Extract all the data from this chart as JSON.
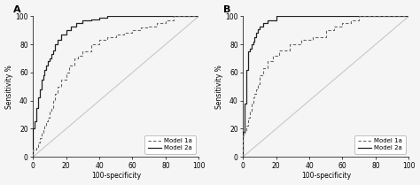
{
  "panel_A": {
    "model1a_x": [
      0,
      0,
      2,
      2,
      3,
      3,
      4,
      4,
      5,
      5,
      6,
      6,
      7,
      7,
      8,
      8,
      9,
      9,
      10,
      10,
      11,
      11,
      12,
      12,
      13,
      13,
      15,
      15,
      17,
      17,
      20,
      20,
      22,
      22,
      25,
      25,
      27,
      27,
      30,
      30,
      35,
      35,
      40,
      40,
      45,
      45,
      50,
      50,
      55,
      55,
      60,
      60,
      65,
      65,
      70,
      70,
      75,
      75,
      80,
      80,
      85,
      85,
      90,
      90,
      95,
      95,
      100
    ],
    "model1a_y": [
      0,
      5,
      5,
      7,
      7,
      10,
      10,
      13,
      13,
      17,
      17,
      20,
      20,
      22,
      22,
      25,
      25,
      28,
      28,
      32,
      32,
      35,
      35,
      40,
      40,
      45,
      45,
      50,
      50,
      55,
      55,
      60,
      60,
      65,
      65,
      70,
      70,
      72,
      72,
      75,
      75,
      80,
      80,
      83,
      83,
      85,
      85,
      87,
      87,
      88,
      88,
      90,
      90,
      92,
      92,
      93,
      93,
      95,
      95,
      97,
      97,
      100,
      100,
      100,
      100,
      100,
      100
    ],
    "model2a_x": [
      0,
      0,
      1,
      1,
      2,
      2,
      3,
      3,
      4,
      4,
      5,
      5,
      6,
      6,
      7,
      7,
      8,
      8,
      9,
      9,
      10,
      10,
      11,
      11,
      12,
      12,
      13,
      13,
      15,
      15,
      17,
      17,
      20,
      20,
      23,
      23,
      26,
      26,
      30,
      30,
      35,
      35,
      40,
      40,
      45,
      45,
      50,
      50,
      55,
      55,
      60,
      60,
      65,
      65,
      70,
      70,
      80,
      80,
      90,
      90,
      100
    ],
    "model2a_y": [
      0,
      20,
      20,
      25,
      25,
      35,
      35,
      42,
      42,
      48,
      48,
      55,
      55,
      58,
      58,
      62,
      62,
      65,
      65,
      68,
      68,
      70,
      70,
      73,
      73,
      76,
      76,
      80,
      80,
      83,
      83,
      87,
      87,
      90,
      90,
      93,
      93,
      95,
      95,
      97,
      97,
      98,
      98,
      99,
      99,
      100,
      100,
      100,
      100,
      100,
      100,
      100,
      100,
      100,
      100,
      100,
      100,
      100,
      100,
      100,
      100
    ]
  },
  "panel_B": {
    "model1a_x": [
      0,
      0,
      1,
      1,
      2,
      2,
      3,
      3,
      4,
      4,
      5,
      5,
      6,
      6,
      7,
      7,
      8,
      8,
      9,
      9,
      10,
      10,
      12,
      12,
      15,
      15,
      18,
      18,
      22,
      22,
      28,
      28,
      35,
      35,
      42,
      42,
      50,
      50,
      55,
      55,
      60,
      60,
      65,
      65,
      70,
      70,
      80,
      80,
      90,
      90,
      100
    ],
    "model1a_y": [
      0,
      15,
      15,
      18,
      18,
      22,
      22,
      28,
      28,
      32,
      32,
      38,
      38,
      42,
      42,
      45,
      45,
      48,
      48,
      52,
      52,
      58,
      58,
      63,
      63,
      68,
      68,
      72,
      72,
      76,
      76,
      80,
      80,
      83,
      83,
      85,
      85,
      90,
      90,
      93,
      93,
      95,
      95,
      97,
      97,
      100,
      100,
      100,
      100,
      100,
      100
    ],
    "model2a_x": [
      0,
      0,
      1,
      1,
      2,
      2,
      3,
      3,
      4,
      4,
      5,
      5,
      6,
      6,
      7,
      7,
      8,
      8,
      9,
      9,
      10,
      10,
      12,
      12,
      15,
      15,
      20,
      20,
      25,
      25,
      30,
      30,
      40,
      40,
      50,
      50,
      55,
      55,
      60,
      60,
      100
    ],
    "model2a_y": [
      0,
      18,
      18,
      38,
      38,
      62,
      62,
      75,
      75,
      77,
      77,
      80,
      80,
      82,
      82,
      85,
      85,
      88,
      88,
      91,
      91,
      93,
      93,
      95,
      95,
      97,
      97,
      100,
      100,
      100,
      100,
      100,
      100,
      100,
      100,
      100,
      100,
      100,
      100,
      100,
      100
    ]
  },
  "line_color_model1a": "#666666",
  "line_color_model2a": "#222222",
  "diagonal_color": "#c8c8c8",
  "bg_color": "#f5f5f5",
  "xlabel": "100-specificity",
  "ylabel": "Sensitivity %",
  "legend_model1a": "Model 1a",
  "legend_model2a": "Model 2a",
  "xlim": [
    0,
    100
  ],
  "ylim": [
    0,
    100
  ],
  "xticks": [
    0,
    20,
    40,
    60,
    80,
    100
  ],
  "yticks": [
    0,
    20,
    40,
    60,
    80,
    100
  ]
}
